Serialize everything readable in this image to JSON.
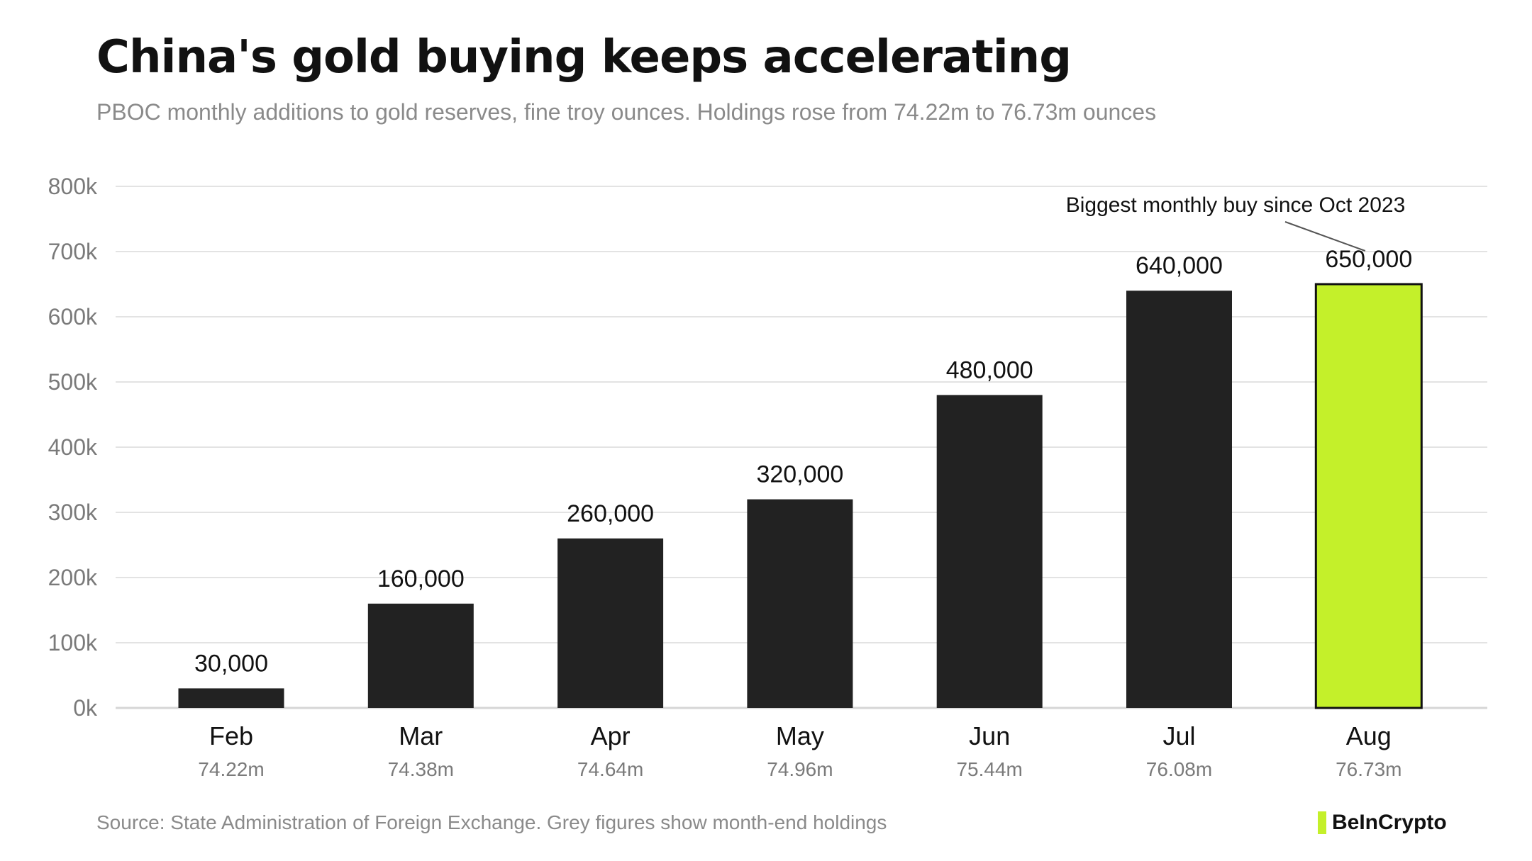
{
  "header": {
    "title": "China's gold buying keeps accelerating",
    "subtitle": "PBOC monthly additions to gold reserves, fine troy ounces. Holdings rose from 74.22m to 76.73m ounces"
  },
  "chart_data": {
    "type": "bar",
    "categories": [
      "Feb",
      "Mar",
      "Apr",
      "May",
      "Jun",
      "Jul",
      "Aug"
    ],
    "values": [
      30000,
      160000,
      260000,
      320000,
      480000,
      640000,
      650000
    ],
    "value_labels": [
      "30,000",
      "160,000",
      "260,000",
      "320,000",
      "480,000",
      "640,000",
      "650,000"
    ],
    "holdings_labels": [
      "74.22m",
      "74.38m",
      "74.64m",
      "74.96m",
      "75.44m",
      "76.08m",
      "76.73m"
    ],
    "y_ticks": [
      0,
      100000,
      200000,
      300000,
      400000,
      500000,
      600000,
      700000,
      800000
    ],
    "y_tick_labels": [
      "0k",
      "100k",
      "200k",
      "300k",
      "400k",
      "500k",
      "600k",
      "700k",
      "800k"
    ],
    "ylim": [
      0,
      800000
    ],
    "grid": true,
    "highlight_index": 6,
    "annotation": {
      "text": "Biggest monthly buy since Oct 2023",
      "category": "Aug"
    },
    "colors": {
      "bar": "#222222",
      "highlight": "#c4f02a",
      "grid": "#e3e3e3",
      "axis_text": "#7a7a7a",
      "value_text": "#111111"
    }
  },
  "footer": {
    "source": "Source: State Administration of Foreign Exchange. Grey figures show month-end holdings",
    "brand": "BeInCrypto",
    "brand_color": "#c4f02a"
  }
}
